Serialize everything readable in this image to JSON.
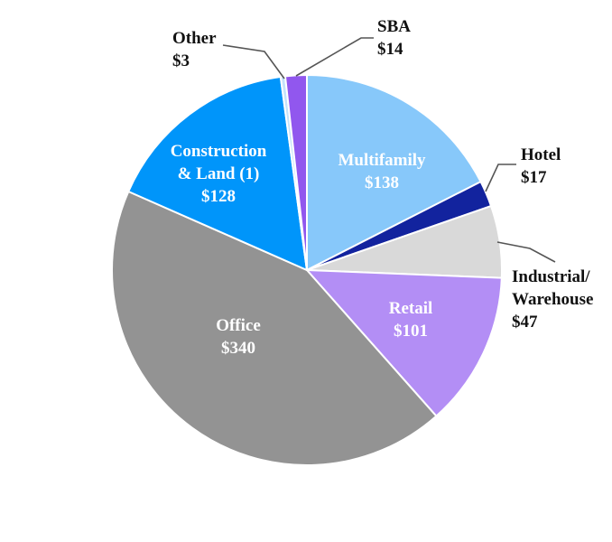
{
  "chart_data": {
    "type": "pie",
    "title": "",
    "unit": "$",
    "slices": [
      {
        "name": "Multifamily",
        "label_lines": [
          "Multifamily",
          "$138"
        ],
        "value": 138,
        "color": "#87c8fa",
        "label_pos": "inside"
      },
      {
        "name": "Hotel",
        "label_lines": [
          "Hotel",
          "$17"
        ],
        "value": 17,
        "color": "#12239e",
        "label_pos": "outside-right"
      },
      {
        "name": "Industrial/ Warehouse",
        "label_lines": [
          "Industrial/",
          "Warehouse",
          "$47"
        ],
        "value": 47,
        "color": "#d9d9d9",
        "label_pos": "outside-right"
      },
      {
        "name": "Retail",
        "label_lines": [
          "Retail",
          "$101"
        ],
        "value": 101,
        "color": "#b38ef5",
        "label_pos": "inside"
      },
      {
        "name": "Office",
        "label_lines": [
          "Office",
          "$340"
        ],
        "value": 340,
        "color": "#939393",
        "label_pos": "inside"
      },
      {
        "name": "Construction & Land (1)",
        "label_lines": [
          "Construction",
          "& Land (1)",
          "$128"
        ],
        "value": 128,
        "color": "#0095fa",
        "label_pos": "inside"
      },
      {
        "name": "Other",
        "label_lines": [
          "Other",
          "$3"
        ],
        "value": 3,
        "color": "#c5e2fa",
        "label_pos": "outside-left"
      },
      {
        "name": "SBA",
        "label_lines": [
          "SBA",
          "$14"
        ],
        "value": 14,
        "color": "#9157ee",
        "label_pos": "outside-right"
      }
    ]
  }
}
